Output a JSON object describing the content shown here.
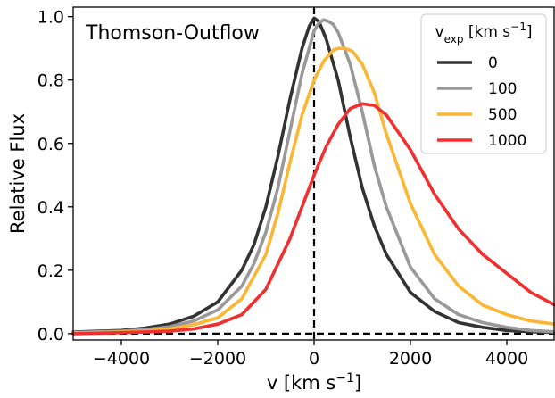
{
  "chart_data": {
    "type": "line",
    "title": "",
    "annotation": "Thomson-Outflow",
    "xlabel": {
      "main": "v [km s",
      "sup": "−1",
      "tail": "]"
    },
    "ylabel": "Relative Flux",
    "xlim": [
      -5000,
      5000
    ],
    "ylim": [
      -0.02,
      1.03
    ],
    "xticks": [
      -4000,
      -2000,
      0,
      2000,
      4000
    ],
    "xtick_labels": [
      "−4000",
      "−2000",
      "0",
      "2000",
      "4000"
    ],
    "yticks": [
      0.0,
      0.2,
      0.4,
      0.6,
      0.8,
      1.0
    ],
    "ytick_labels": [
      "0.0",
      "0.2",
      "0.4",
      "0.6",
      "0.8",
      "1.0"
    ],
    "reference_lines": {
      "vertical_x": 0,
      "horizontal_y": 0,
      "style": "dashed",
      "color": "#000000"
    },
    "grid": false,
    "legend": {
      "placement": "top-right",
      "title": {
        "main": "v",
        "sub": "exp",
        "tail": " [km s",
        "sup": "−1",
        "end": "]"
      }
    },
    "series": [
      {
        "name": "0",
        "color": "#333333",
        "x": [
          -5000,
          -4000,
          -3500,
          -3000,
          -2500,
          -2000,
          -1500,
          -1250,
          -1000,
          -750,
          -500,
          -250,
          -100,
          0,
          100,
          250,
          500,
          750,
          1000,
          1250,
          1500,
          2000,
          2500,
          3000,
          3500,
          4000,
          4500,
          5000
        ],
        "y": [
          0.005,
          0.01,
          0.018,
          0.03,
          0.055,
          0.1,
          0.2,
          0.28,
          0.4,
          0.56,
          0.74,
          0.9,
          0.97,
          0.995,
          0.985,
          0.93,
          0.8,
          0.62,
          0.46,
          0.34,
          0.25,
          0.13,
          0.07,
          0.035,
          0.02,
          0.01,
          0.006,
          0.004
        ]
      },
      {
        "name": "100",
        "color": "#999999",
        "x": [
          -5000,
          -4000,
          -3500,
          -3000,
          -2500,
          -2000,
          -1500,
          -1250,
          -1000,
          -750,
          -500,
          -250,
          0,
          100,
          200,
          300,
          400,
          500,
          750,
          1000,
          1250,
          1500,
          2000,
          2500,
          3000,
          3500,
          4000,
          4500,
          5000
        ],
        "y": [
          0.004,
          0.008,
          0.013,
          0.022,
          0.04,
          0.075,
          0.15,
          0.22,
          0.32,
          0.46,
          0.64,
          0.82,
          0.955,
          0.98,
          0.99,
          0.985,
          0.975,
          0.95,
          0.85,
          0.7,
          0.53,
          0.4,
          0.21,
          0.11,
          0.06,
          0.035,
          0.02,
          0.01,
          0.006
        ]
      },
      {
        "name": "500",
        "color": "#fbb634",
        "x": [
          -5000,
          -4000,
          -3500,
          -3000,
          -2500,
          -2000,
          -1500,
          -1000,
          -750,
          -500,
          -250,
          0,
          200,
          400,
          500,
          650,
          800,
          1000,
          1250,
          1500,
          2000,
          2500,
          3000,
          3500,
          4000,
          4500,
          5000
        ],
        "y": [
          0.002,
          0.005,
          0.008,
          0.015,
          0.028,
          0.05,
          0.11,
          0.25,
          0.38,
          0.54,
          0.69,
          0.8,
          0.86,
          0.895,
          0.9,
          0.9,
          0.89,
          0.85,
          0.76,
          0.63,
          0.41,
          0.25,
          0.15,
          0.09,
          0.06,
          0.04,
          0.03
        ]
      },
      {
        "name": "1000",
        "color": "#f03030",
        "x": [
          -5000,
          -4000,
          -3000,
          -2500,
          -2000,
          -1500,
          -1000,
          -500,
          0,
          250,
          500,
          750,
          1000,
          1250,
          1500,
          2000,
          2500,
          3000,
          3500,
          4000,
          4500,
          5000
        ],
        "y": [
          0.0,
          0.003,
          0.008,
          0.015,
          0.03,
          0.06,
          0.14,
          0.3,
          0.5,
          0.59,
          0.66,
          0.71,
          0.725,
          0.72,
          0.69,
          0.58,
          0.44,
          0.33,
          0.25,
          0.19,
          0.13,
          0.09
        ]
      }
    ]
  }
}
